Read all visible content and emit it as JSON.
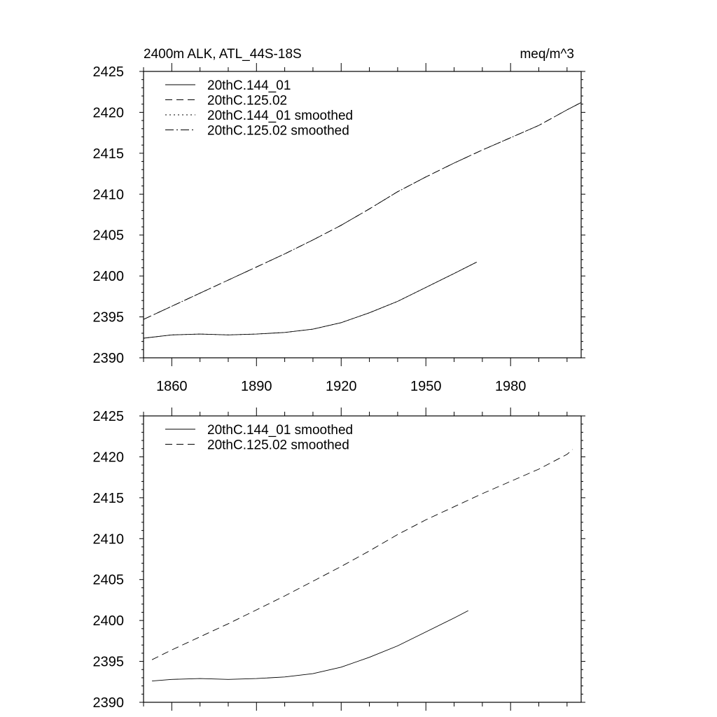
{
  "chart_data": [
    {
      "type": "line",
      "title_left": "2400m ALK, ATL_44S-18S",
      "title_right": "meq/m^3",
      "xlim": [
        1850,
        2005
      ],
      "ylim": [
        2390,
        2425
      ],
      "x_ticks": [
        1860,
        1890,
        1920,
        1950,
        1980
      ],
      "y_ticks": [
        2390,
        2395,
        2400,
        2405,
        2410,
        2415,
        2420,
        2425
      ],
      "show_x_tick_labels": true,
      "legend_position": "top-left",
      "series": [
        {
          "name": "20thC.144_01",
          "dash": "none",
          "x": [
            1850,
            1860,
            1870,
            1880,
            1890,
            1900,
            1910,
            1920,
            1930,
            1940,
            1950,
            1960,
            1968
          ],
          "y": [
            2392.4,
            2392.8,
            2392.9,
            2392.8,
            2392.9,
            2393.1,
            2393.5,
            2394.3,
            2395.5,
            2396.9,
            2398.6,
            2400.3,
            2401.7
          ]
        },
        {
          "name": "20thC.125.02",
          "dash": "10,6",
          "x": [
            1850,
            1860,
            1870,
            1880,
            1890,
            1900,
            1910,
            1920,
            1930,
            1940,
            1950,
            1960,
            1970,
            1980,
            1990,
            2000,
            2005
          ],
          "y": [
            2394.7,
            2396.3,
            2397.9,
            2399.5,
            2401.1,
            2402.7,
            2404.4,
            2406.2,
            2408.2,
            2410.3,
            2412.1,
            2413.8,
            2415.4,
            2416.9,
            2418.4,
            2420.3,
            2421.2
          ]
        },
        {
          "name": "20thC.144_01 smoothed",
          "dash": "2,4",
          "x": [
            1850,
            1860,
            1870,
            1880,
            1890,
            1900,
            1910,
            1920,
            1930,
            1940,
            1950,
            1960,
            1968
          ],
          "y": [
            2392.4,
            2392.8,
            2392.9,
            2392.8,
            2392.9,
            2393.1,
            2393.5,
            2394.3,
            2395.5,
            2396.9,
            2398.6,
            2400.3,
            2401.7
          ]
        },
        {
          "name": "20thC.125.02 smoothed",
          "dash": "12,4,2,4",
          "x": [
            1850,
            1860,
            1870,
            1880,
            1890,
            1900,
            1910,
            1920,
            1930,
            1940,
            1950,
            1960,
            1970,
            1980,
            1990,
            2000,
            2005
          ],
          "y": [
            2394.7,
            2396.3,
            2397.9,
            2399.5,
            2401.1,
            2402.7,
            2404.4,
            2406.2,
            2408.2,
            2410.3,
            2412.1,
            2413.8,
            2415.4,
            2416.9,
            2418.4,
            2420.3,
            2421.2
          ]
        }
      ]
    },
    {
      "type": "line",
      "title_left": "",
      "title_right": "",
      "xlim": [
        1850,
        2005
      ],
      "ylim": [
        2390,
        2425
      ],
      "x_ticks": [
        1860,
        1890,
        1920,
        1950,
        1980
      ],
      "y_ticks": [
        2390,
        2395,
        2400,
        2405,
        2410,
        2415,
        2420,
        2425
      ],
      "show_x_tick_labels": false,
      "legend_position": "top-left",
      "series": [
        {
          "name": "20thC.144_01 smoothed",
          "dash": "none",
          "x": [
            1853,
            1860,
            1870,
            1880,
            1890,
            1900,
            1910,
            1920,
            1930,
            1940,
            1950,
            1960,
            1965
          ],
          "y": [
            2392.6,
            2392.8,
            2392.9,
            2392.8,
            2392.9,
            2393.1,
            2393.5,
            2394.3,
            2395.5,
            2396.9,
            2398.6,
            2400.3,
            2401.2
          ]
        },
        {
          "name": "20thC.125.02 smoothed",
          "dash": "10,6",
          "x": [
            1853,
            1860,
            1870,
            1880,
            1890,
            1900,
            1910,
            1920,
            1930,
            1940,
            1950,
            1960,
            1970,
            1980,
            1990,
            2000,
            2002
          ],
          "y": [
            2395.2,
            2396.4,
            2398.0,
            2399.6,
            2401.3,
            2403.0,
            2404.8,
            2406.6,
            2408.5,
            2410.5,
            2412.3,
            2413.9,
            2415.5,
            2417.0,
            2418.5,
            2420.3,
            2420.9
          ]
        }
      ]
    }
  ]
}
